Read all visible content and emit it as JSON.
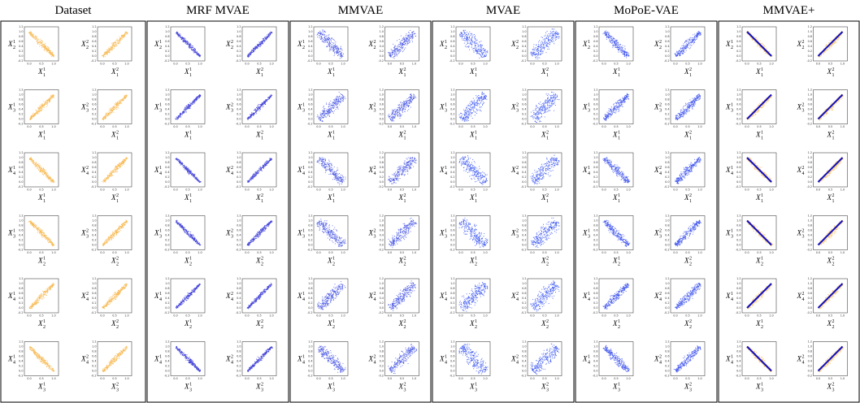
{
  "columns": [
    "Dataset",
    "MRF MVAE",
    "MMVAE",
    "MVAE",
    "MoPoE-VAE",
    "MMVAE+"
  ],
  "symbol": "X",
  "xticks": [
    "0.0",
    "0.5",
    "1.0"
  ],
  "yticks": [
    "-0.2",
    "0.0",
    "0.2",
    "0.4",
    "0.6",
    "0.8",
    "1.0",
    "1.2"
  ],
  "rows": [
    {
      "cells": [
        {
          "y_sub": "2",
          "y_sup": "1",
          "x_sub": "1",
          "x_sup": "1"
        },
        {
          "y_sub": "2",
          "y_sup": "2",
          "x_sub": "1",
          "x_sup": "2"
        }
      ]
    },
    {
      "cells": [
        {
          "y_sub": "3",
          "y_sup": "1",
          "x_sub": "1",
          "x_sup": "1"
        },
        {
          "y_sub": "3",
          "y_sup": "2",
          "x_sub": "1",
          "x_sup": "2"
        }
      ]
    },
    {
      "cells": [
        {
          "y_sub": "4",
          "y_sup": "1",
          "x_sub": "1",
          "x_sup": "1"
        },
        {
          "y_sub": "4",
          "y_sup": "2",
          "x_sub": "1",
          "x_sup": "2"
        }
      ]
    },
    {
      "cells": [
        {
          "y_sub": "3",
          "y_sup": "1",
          "x_sub": "2",
          "x_sup": "1"
        },
        {
          "y_sub": "3",
          "y_sup": "2",
          "x_sub": "2",
          "x_sup": "2"
        }
      ]
    },
    {
      "cells": [
        {
          "y_sub": "4",
          "y_sup": "1",
          "x_sub": "2",
          "x_sup": "1"
        },
        {
          "y_sub": "4",
          "y_sup": "2",
          "x_sub": "2",
          "x_sup": "2"
        }
      ]
    },
    {
      "cells": [
        {
          "y_sub": "4",
          "y_sup": "1",
          "x_sub": "3",
          "x_sup": "1"
        },
        {
          "y_sub": "4",
          "y_sup": "2",
          "x_sub": "3",
          "x_sup": "2"
        }
      ]
    }
  ]
}
